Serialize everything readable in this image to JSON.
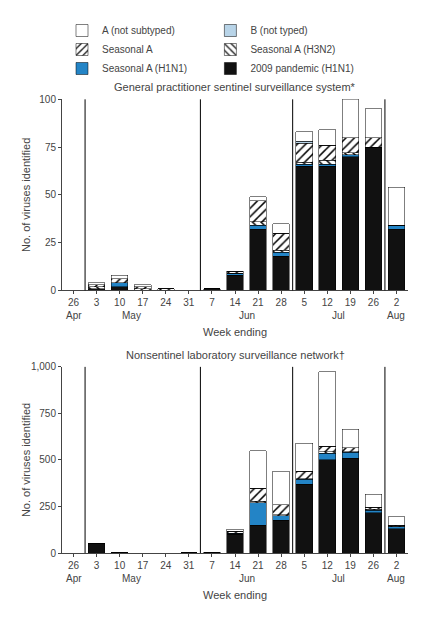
{
  "chart_data": [
    {
      "type": "bar",
      "stacked": true,
      "grid": false,
      "legend": "top",
      "title": "General practitioner sentinel surveillance system*",
      "xlabel": "Week ending",
      "ylabel": "No. of viruses identified",
      "categories": [
        "26",
        "3",
        "10",
        "17",
        "24",
        "31",
        "7",
        "14",
        "21",
        "28",
        "5",
        "12",
        "19",
        "26",
        "2"
      ],
      "series": [
        {
          "name": "2009 pandemic (H1N1)",
          "color": "#111111",
          "values": [
            0,
            1,
            2,
            0,
            0,
            0,
            1,
            8,
            32,
            18,
            65,
            65,
            70,
            75,
            32
          ]
        },
        {
          "name": "Seasonal A (H1N1)",
          "color": "#2384c6",
          "values": [
            0,
            0,
            2,
            0,
            0,
            0,
            0,
            1,
            2,
            2,
            1,
            1,
            1,
            0,
            2
          ]
        },
        {
          "name": "Seasonal A (H3N2)",
          "color": "#ffffff",
          "marker": "backslash_hatch",
          "values": [
            0,
            1,
            0,
            1,
            0,
            0,
            0,
            0,
            2,
            1,
            1,
            2,
            1,
            0,
            0
          ]
        },
        {
          "name": "Seasonal A",
          "color": "#ffffff",
          "marker": "slash_hatch",
          "values": [
            0,
            1,
            2,
            1,
            1,
            0,
            0,
            1,
            11,
            9,
            10,
            8,
            8,
            5,
            0
          ]
        },
        {
          "name": "B (not typed)",
          "color": "#b8d4e8",
          "values": [
            0,
            0,
            0,
            0,
            0,
            0,
            0,
            0,
            0,
            0,
            1,
            0,
            0,
            0,
            0
          ]
        },
        {
          "name": "A (not subtyped)",
          "color": "#ffffff",
          "values": [
            0,
            1,
            2,
            1,
            0,
            0,
            0,
            0,
            2,
            5,
            5,
            8,
            20,
            15,
            20
          ]
        }
      ],
      "ylim": [
        0,
        100
      ],
      "yticks": [
        0,
        25,
        50,
        75,
        100
      ],
      "month_dividers": [
        0.5,
        5.5,
        9.5,
        13.5
      ],
      "annotations": [
        {
          "text": "Apr",
          "x": 0
        },
        {
          "text": "May",
          "x": 2.5
        },
        {
          "text": "Jun",
          "x": 7.5
        },
        {
          "text": "Jul",
          "x": 11.5
        },
        {
          "text": "Aug",
          "x": 14
        }
      ]
    },
    {
      "type": "bar",
      "stacked": true,
      "grid": false,
      "title": "Nonsentinel laboratory surveillance network†",
      "xlabel": "Week ending",
      "ylabel": "No. of viruses identified",
      "categories": [
        "26",
        "3",
        "10",
        "17",
        "24",
        "31",
        "7",
        "14",
        "21",
        "28",
        "5",
        "12",
        "19",
        "26",
        "2"
      ],
      "series": [
        {
          "name": "2009 pandemic (H1N1)",
          "color": "#111111",
          "values": [
            0,
            50,
            5,
            0,
            0,
            1,
            5,
            100,
            150,
            175,
            370,
            500,
            510,
            215,
            130
          ]
        },
        {
          "name": "Seasonal A (H1N1)",
          "color": "#2384c6",
          "values": [
            0,
            0,
            0,
            0,
            0,
            0,
            0,
            5,
            120,
            25,
            25,
            35,
            30,
            15,
            10
          ]
        },
        {
          "name": "Seasonal A (H3N2)",
          "color": "#ffffff",
          "marker": "backslash_hatch",
          "values": [
            0,
            0,
            0,
            0,
            0,
            0,
            0,
            2,
            8,
            5,
            5,
            8,
            5,
            5,
            5
          ]
        },
        {
          "name": "Seasonal A",
          "color": "#ffffff",
          "marker": "slash_hatch",
          "values": [
            0,
            0,
            0,
            0,
            0,
            0,
            0,
            10,
            70,
            55,
            40,
            30,
            20,
            10,
            5
          ]
        },
        {
          "name": "B (not typed)",
          "color": "#b8d4e8",
          "values": [
            0,
            0,
            0,
            0,
            0,
            0,
            0,
            0,
            0,
            0,
            0,
            0,
            0,
            0,
            0
          ]
        },
        {
          "name": "A (not subtyped)",
          "color": "#ffffff",
          "values": [
            0,
            0,
            0,
            0,
            0,
            0,
            0,
            10,
            200,
            180,
            150,
            400,
            100,
            70,
            45
          ]
        }
      ],
      "ylim": [
        0,
        1000
      ],
      "yticks": [
        0,
        250,
        500,
        750,
        {
          "value": 1000,
          "label": "1,000"
        }
      ],
      "month_dividers": [
        0.5,
        5.5,
        9.5,
        13.5
      ],
      "annotations": [
        {
          "text": "Apr",
          "x": 0
        },
        {
          "text": "May",
          "x": 2.5
        },
        {
          "text": "Jun",
          "x": 7.5
        },
        {
          "text": "Jul",
          "x": 11.5
        },
        {
          "text": "Aug",
          "x": 14
        }
      ]
    }
  ]
}
